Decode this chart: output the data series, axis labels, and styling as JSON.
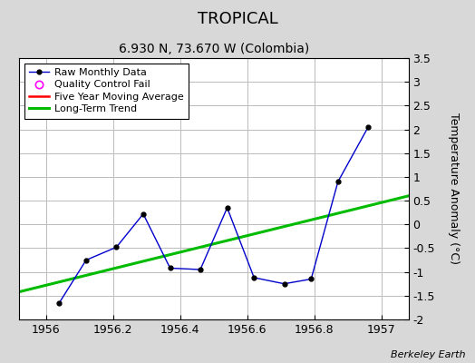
{
  "title": "TROPICAL",
  "subtitle": "6.930 N, 73.670 W (Colombia)",
  "ylabel": "Temperature Anomaly (°C)",
  "attribution": "Berkeley Earth",
  "xlim": [
    1955.92,
    1957.08
  ],
  "ylim": [
    -2.0,
    3.5
  ],
  "yticks": [
    -2.0,
    -1.5,
    -1.0,
    -0.5,
    0.0,
    0.5,
    1.0,
    1.5,
    2.0,
    2.5,
    3.0,
    3.5
  ],
  "xticks": [
    1956.0,
    1956.2,
    1956.4,
    1956.6,
    1956.8,
    1957.0
  ],
  "raw_x": [
    1956.04,
    1956.12,
    1956.21,
    1956.29,
    1956.37,
    1956.46,
    1956.54,
    1956.62,
    1956.71,
    1956.79,
    1956.87,
    1956.96
  ],
  "raw_y": [
    -1.65,
    -0.75,
    -0.48,
    0.22,
    -0.92,
    -0.95,
    0.35,
    -1.12,
    -1.25,
    -1.15,
    0.9,
    2.05
  ],
  "trend_x": [
    1955.92,
    1957.08
  ],
  "trend_y": [
    -1.42,
    0.6
  ],
  "legend_labels": [
    "Raw Monthly Data",
    "Quality Control Fail",
    "Five Year Moving Average",
    "Long-Term Trend"
  ],
  "raw_color": "#0000cc",
  "raw_marker_color": "#000000",
  "qc_color": "#ff00ff",
  "moving_avg_color": "#ff0000",
  "trend_color": "#00bb00",
  "background_color": "#d8d8d8",
  "plot_bg_color": "#ffffff",
  "grid_color": "#bbbbbb",
  "title_fontsize": 13,
  "subtitle_fontsize": 10,
  "ylabel_fontsize": 9,
  "tick_fontsize": 9
}
